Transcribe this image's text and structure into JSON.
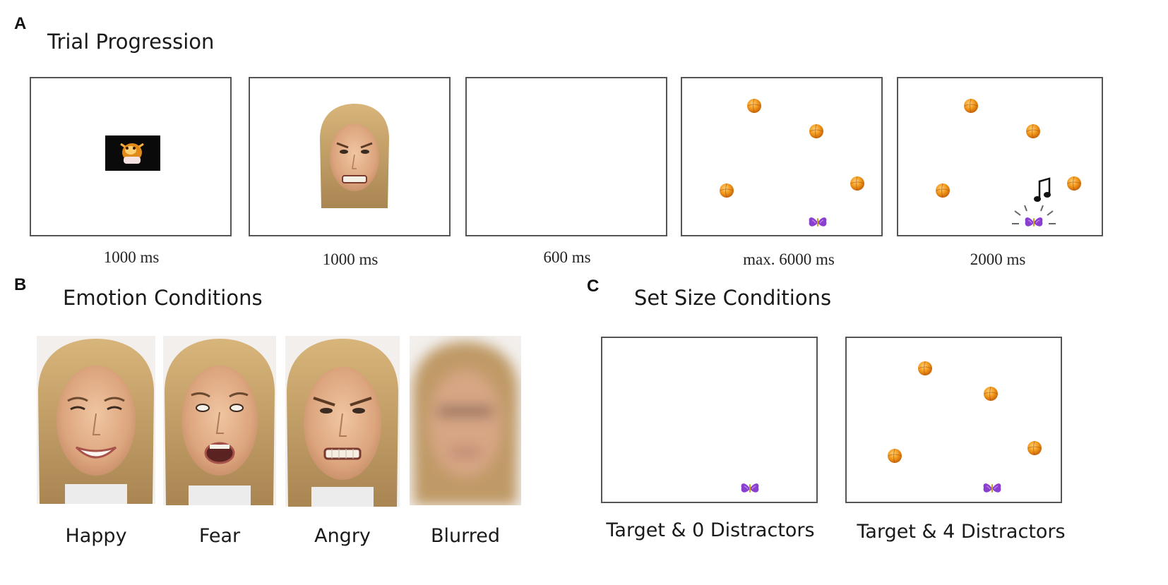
{
  "panels": {
    "a": {
      "letter": "A",
      "title": "Trial Progression"
    },
    "b": {
      "letter": "B",
      "title": "Emotion Conditions"
    },
    "c": {
      "letter": "C",
      "title": "Set Size Conditions"
    }
  },
  "trial_steps": [
    {
      "duration": "1000 ms",
      "content": "reward-image"
    },
    {
      "duration": "1000 ms",
      "content": "angry-face"
    },
    {
      "duration": "600 ms",
      "content": "blank"
    },
    {
      "duration": "max. 6000 ms",
      "content": "search-display"
    },
    {
      "duration": "2000 ms",
      "content": "feedback-display"
    }
  ],
  "emotions": [
    {
      "label": "Happy",
      "expression": "smile"
    },
    {
      "label": "Fear",
      "expression": "fear"
    },
    {
      "label": "Angry",
      "expression": "angry"
    },
    {
      "label": "Blurred",
      "expression": "blurred"
    }
  ],
  "set_sizes": [
    {
      "label": "Target & 0 Distractors",
      "distractors": 0
    },
    {
      "label": "Target & 4 Distractors",
      "distractors": 4
    }
  ],
  "colors": {
    "ball": "#f0a020",
    "butterfly": "#8a3fd0",
    "frame_border": "#555555",
    "skin": "#e2b48e",
    "hair": "#c9a46a"
  }
}
